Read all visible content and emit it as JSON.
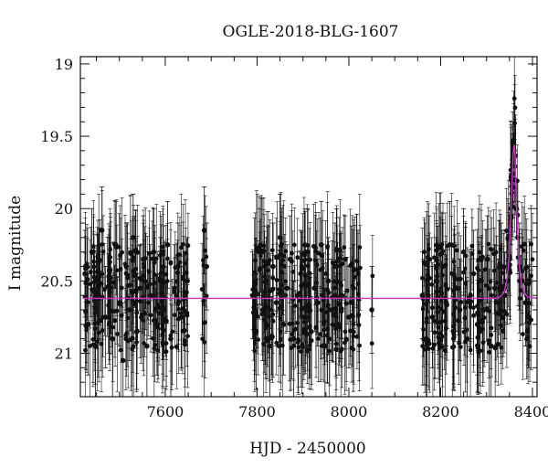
{
  "chart_data": {
    "type": "scatter",
    "title": "OGLE-2018-BLG-1607",
    "xlabel": "HJD - 2450000",
    "ylabel": "I magnitude",
    "xlim": [
      7415,
      8410
    ],
    "ylim": [
      21.3,
      18.95
    ],
    "y_inverted": true,
    "x_ticks": [
      7600,
      7800,
      8000,
      8200,
      8400
    ],
    "x_tick_labels": [
      "7600",
      "7800",
      "8000",
      "8200",
      "8400"
    ],
    "y_ticks": [
      19,
      19.5,
      20,
      20.5,
      21
    ],
    "y_tick_labels": [
      "19",
      "19.5",
      "20",
      "20.5",
      "21"
    ],
    "grid": false,
    "legend": "none",
    "colors": {
      "points": "#111111",
      "model": "#cc33cc"
    },
    "baseline_mag": 20.62,
    "observing_seasons": [
      [
        7425,
        7650
      ],
      [
        7680,
        7690
      ],
      [
        7790,
        8025
      ],
      [
        8050,
        8052
      ],
      [
        8160,
        8400
      ]
    ],
    "series": [
      {
        "kind": "observations",
        "x": [
          7425,
          7432,
          7440,
          7448,
          7455,
          7462,
          7470,
          7478,
          7485,
          7492,
          7500,
          7508,
          7515,
          7522,
          7530,
          7538,
          7545,
          7552,
          7560,
          7568,
          7575,
          7582,
          7590,
          7598,
          7605,
          7612,
          7620,
          7628,
          7635,
          7642,
          7648,
          7685,
          7690,
          7790,
          7798,
          7805,
          7812,
          7820,
          7828,
          7835,
          7842,
          7850,
          7858,
          7865,
          7872,
          7880,
          7888,
          7895,
          7902,
          7910,
          7918,
          7925,
          7932,
          7940,
          7948,
          7955,
          7962,
          7970,
          7978,
          7985,
          7992,
          8000,
          8010,
          8020,
          8050,
          8160,
          8168,
          8175,
          8182,
          8190,
          8198,
          8205,
          8212,
          8220,
          8228,
          8235,
          8242,
          8250,
          8258,
          8265,
          8272,
          8280,
          8288,
          8295,
          8302,
          8310,
          8318,
          8325,
          8332,
          8340,
          8345,
          8350,
          8353,
          8356,
          8358,
          8360,
          8362,
          8365,
          8368,
          8372,
          8378,
          8385,
          8392
        ],
        "y": [
          20.45,
          20.8,
          20.3,
          20.95,
          20.6,
          20.15,
          20.75,
          20.5,
          20.9,
          20.25,
          20.65,
          21.05,
          20.4,
          20.7,
          20.2,
          20.85,
          20.55,
          20.35,
          20.95,
          20.6,
          20.3,
          20.8,
          20.5,
          20.7,
          20.25,
          20.9,
          20.55,
          20.4,
          20.75,
          20.6,
          20.5,
          20.15,
          20.4,
          20.6,
          20.85,
          20.3,
          20.7,
          20.5,
          20.95,
          20.4,
          20.65,
          20.2,
          20.8,
          20.55,
          20.35,
          20.9,
          20.6,
          20.45,
          20.75,
          20.3,
          20.85,
          20.55,
          20.65,
          20.25,
          20.95,
          20.5,
          20.7,
          20.4,
          20.8,
          20.6,
          20.35,
          20.75,
          20.55,
          20.45,
          20.7,
          20.6,
          20.9,
          20.35,
          20.75,
          20.5,
          20.95,
          20.4,
          20.65,
          20.25,
          20.85,
          20.55,
          20.7,
          20.3,
          20.9,
          20.6,
          20.45,
          20.8,
          20.5,
          20.7,
          20.35,
          20.95,
          20.55,
          20.65,
          20.4,
          20.6,
          20.5,
          20.35,
          20.05,
          19.7,
          19.55,
          19.6,
          19.8,
          20.0,
          20.2,
          20.4,
          20.5,
          20.65,
          20.75
        ],
        "err": [
          0.3,
          0.35,
          0.3,
          0.4,
          0.3,
          0.3,
          0.35,
          0.3,
          0.4,
          0.3,
          0.3,
          0.4,
          0.3,
          0.35,
          0.3,
          0.4,
          0.3,
          0.3,
          0.4,
          0.3,
          0.3,
          0.35,
          0.3,
          0.3,
          0.3,
          0.4,
          0.3,
          0.3,
          0.35,
          0.3,
          0.3,
          0.3,
          0.3,
          0.3,
          0.4,
          0.3,
          0.35,
          0.3,
          0.4,
          0.3,
          0.3,
          0.3,
          0.35,
          0.3,
          0.3,
          0.4,
          0.3,
          0.3,
          0.35,
          0.3,
          0.4,
          0.3,
          0.3,
          0.3,
          0.4,
          0.3,
          0.35,
          0.3,
          0.35,
          0.3,
          0.3,
          0.35,
          0.3,
          0.3,
          0.3,
          0.3,
          0.4,
          0.3,
          0.35,
          0.3,
          0.4,
          0.3,
          0.3,
          0.3,
          0.4,
          0.3,
          0.35,
          0.3,
          0.4,
          0.3,
          0.3,
          0.35,
          0.3,
          0.35,
          0.3,
          0.4,
          0.3,
          0.3,
          0.3,
          0.3,
          0.3,
          0.25,
          0.2,
          0.15,
          0.12,
          0.12,
          0.15,
          0.2,
          0.25,
          0.3,
          0.3,
          0.3,
          0.35
        ]
      },
      {
        "kind": "model",
        "x": [
          7420,
          8320,
          8330,
          8338,
          8344,
          8348,
          8352,
          8355,
          8358,
          8360,
          8362,
          8364,
          8367,
          8371,
          8376,
          8382,
          8390,
          8410
        ],
        "y": [
          20.62,
          20.62,
          20.61,
          20.58,
          20.5,
          20.38,
          20.12,
          19.85,
          19.62,
          19.56,
          19.62,
          19.85,
          20.12,
          20.38,
          20.52,
          20.58,
          20.61,
          20.62
        ]
      }
    ]
  }
}
